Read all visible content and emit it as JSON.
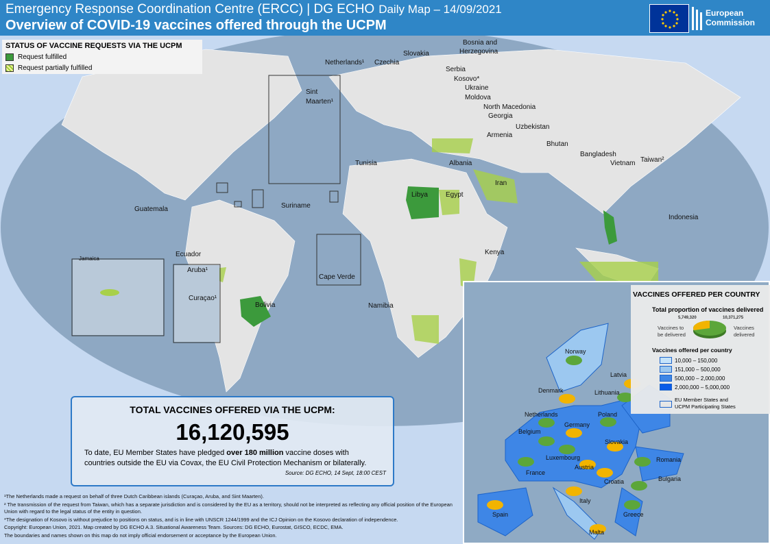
{
  "header": {
    "org": "Emergency Response Coordination Centre (ERCC) | DG ECHO",
    "date": "Daily Map – 14/09/2021",
    "title": "Overview of COVID-19 vaccines offered through the UCPM",
    "logo": [
      "European",
      "Commission"
    ]
  },
  "status_legend": {
    "title": "STATUS OF VACCINE REQUESTS VIA THE UCPM",
    "fulfilled": "Request fulfilled",
    "partial": "Request partially fulfilled",
    "colors": {
      "fulfilled": "#3c9a3c",
      "partial": "#9acd32"
    }
  },
  "world_labels": [
    "Netherlands¹",
    "Czechia",
    "Slovakia",
    "Bosnia and",
    "Herzegovina",
    "Serbia",
    "Kosovo*",
    "Ukraine",
    "Moldova",
    "North Macedonia",
    "Georgia",
    "Uzbekistan",
    "Armenia",
    "Bhutan",
    "Bangladesh",
    "Vietnam",
    "Taiwan²",
    "Tunisia",
    "Albania",
    "Libya",
    "Egypt",
    "Iran",
    "Indonesia",
    "Guatemala",
    "Suriname",
    "Ecuador",
    "Kenya",
    "Namibia",
    "Bolivia",
    "Cape Verde",
    "Aruba¹",
    "Curaçao¹",
    "Jamaica",
    "Sint",
    "Maarten¹"
  ],
  "total": {
    "title": "TOTAL VACCINES OFFERED VIA THE UCPM:",
    "value": "16,120,595",
    "desc_pre": "To date, EU Member States have pledged ",
    "desc_bold": "over 180 million",
    "desc_post": " vaccine doses with countries outside the EU via Covax, the EU Civil Protection Mechanism or bilaterally.",
    "source": "Source: DG ECHO, 14 Sept, 18:00 CEST"
  },
  "notes": [
    "¹The Netherlands made a request on behalf of three Dutch Caribbean islands (Curaçao, Aruba, and Sint Maarten).",
    "² The transmission of the request from Taiwan, which has a separate jurisdiction and is considered by the EU as a territory, should not be interpreted as reflecting any official position of the European Union with regard to the legal status of the entity in question.",
    "*The designation of Kosovo is without prejudice to positions on status, and is in line with UNSCR 1244/1999 and the ICJ Opinion on the Kosovo declaration of independence.",
    "Copyright: European Union, 2021. Map created by DG ECHO A.3. Situational Awareness Team. Sources: DG ECHO, Eurostat, GISCO, ECDC, EMA.",
    "The boundaries and names shown on this map do not imply official endorsement or acceptance by the European Union."
  ],
  "vaccines_legend": {
    "title": "VACCINES OFFERED PER COUNTRY",
    "proportion_title": "Total proportion of vaccines delivered",
    "to_be_delivered": {
      "value": "5,749,320",
      "label1": "Vaccines to",
      "label2": "be delivered",
      "color": "#f2b400"
    },
    "delivered": {
      "value": "10,371,275",
      "label1": "Vaccines",
      "label2": "delivered",
      "color": "#5ca63a"
    },
    "classes_title": "Vaccines offered per country",
    "classes": [
      {
        "label": "10,000 – 150,000",
        "color": "#c5e3fa"
      },
      {
        "label": "151,000 – 500,000",
        "color": "#9cc8f0"
      },
      {
        "label": "500,000 – 2,000,000",
        "color": "#3e86e6"
      },
      {
        "label": "2,000,000 – 5,000,000",
        "color": "#0a5ce8"
      }
    ],
    "eu_label1": "EU Member States and",
    "eu_label2": "UCPM Participating States"
  },
  "europe_labels": [
    "Norway",
    "Latvia",
    "Denmark",
    "Lithuania",
    "Netherlands",
    "Poland",
    "Belgium",
    "Germany",
    "Slovakia",
    "Luxembourg",
    "Romania",
    "France",
    "Austria",
    "Croatia",
    "Bulgaria",
    "Italy",
    "Spain",
    "Greece",
    "Malta"
  ]
}
